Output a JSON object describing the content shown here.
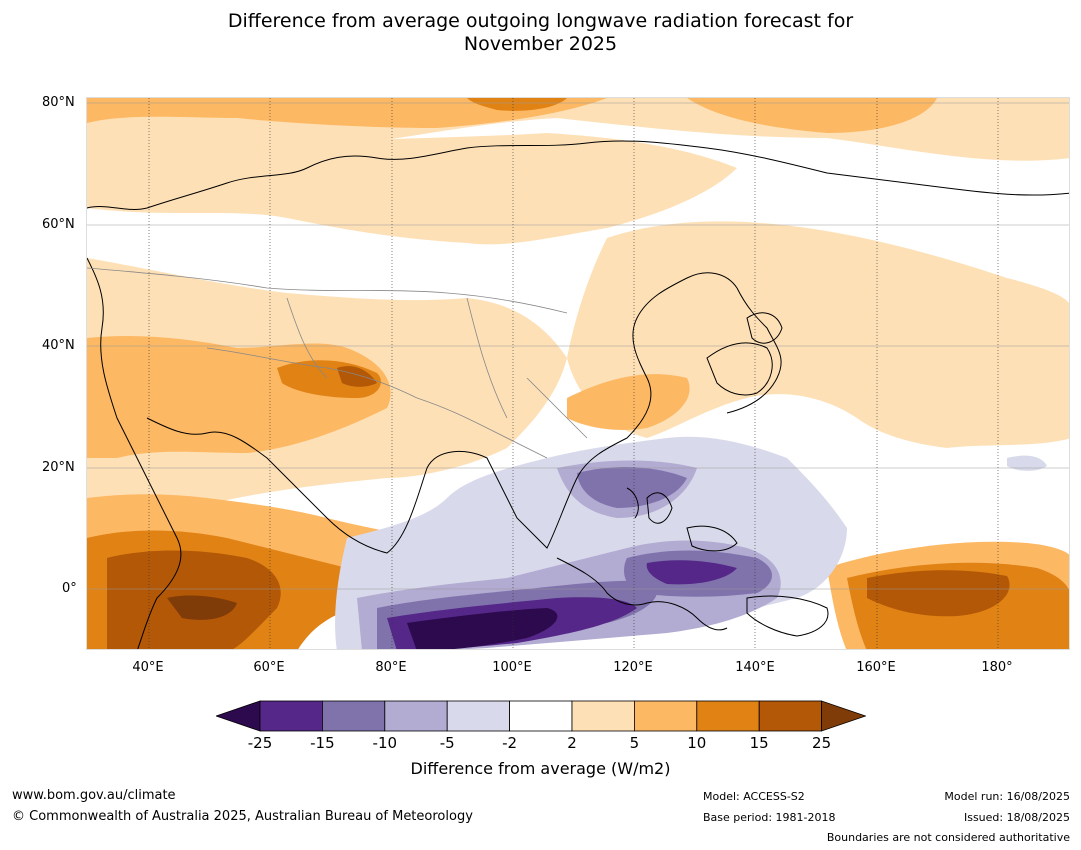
{
  "title_line1": "Difference from average outgoing longwave radiation forecast for",
  "title_line2": "November 2025",
  "lat_labels": [
    "80°N",
    "60°N",
    "40°N",
    "20°N",
    "0°"
  ],
  "lon_labels": [
    "40°E",
    "60°E",
    "80°E",
    "100°E",
    "120°E",
    "140°E",
    "160°E",
    "180°"
  ],
  "colorbar": {
    "ticks": [
      "-25",
      "-15",
      "-10",
      "-5",
      "-2",
      "2",
      "5",
      "10",
      "15",
      "25"
    ],
    "colors": [
      "#2d0a4e",
      "#542788",
      "#8073ac",
      "#b2abd2",
      "#d8daeb",
      "#ffffff",
      "#fee0b6",
      "#fdb863",
      "#e08214",
      "#b35806",
      "#7f3b08"
    ],
    "label": "Difference from average (W/m2)"
  },
  "footer": {
    "website": "www.bom.gov.au/climate",
    "copyright": "© Commonwealth of Australia 2025, Australian Bureau of Meteorology",
    "model": "Model: ACCESS-S2",
    "base_period": "Base period: 1981-2018",
    "model_run": "Model run: 16/08/2025",
    "issued": "Issued: 18/08/2025",
    "disclaimer": "Boundaries are not considered authoritative"
  }
}
